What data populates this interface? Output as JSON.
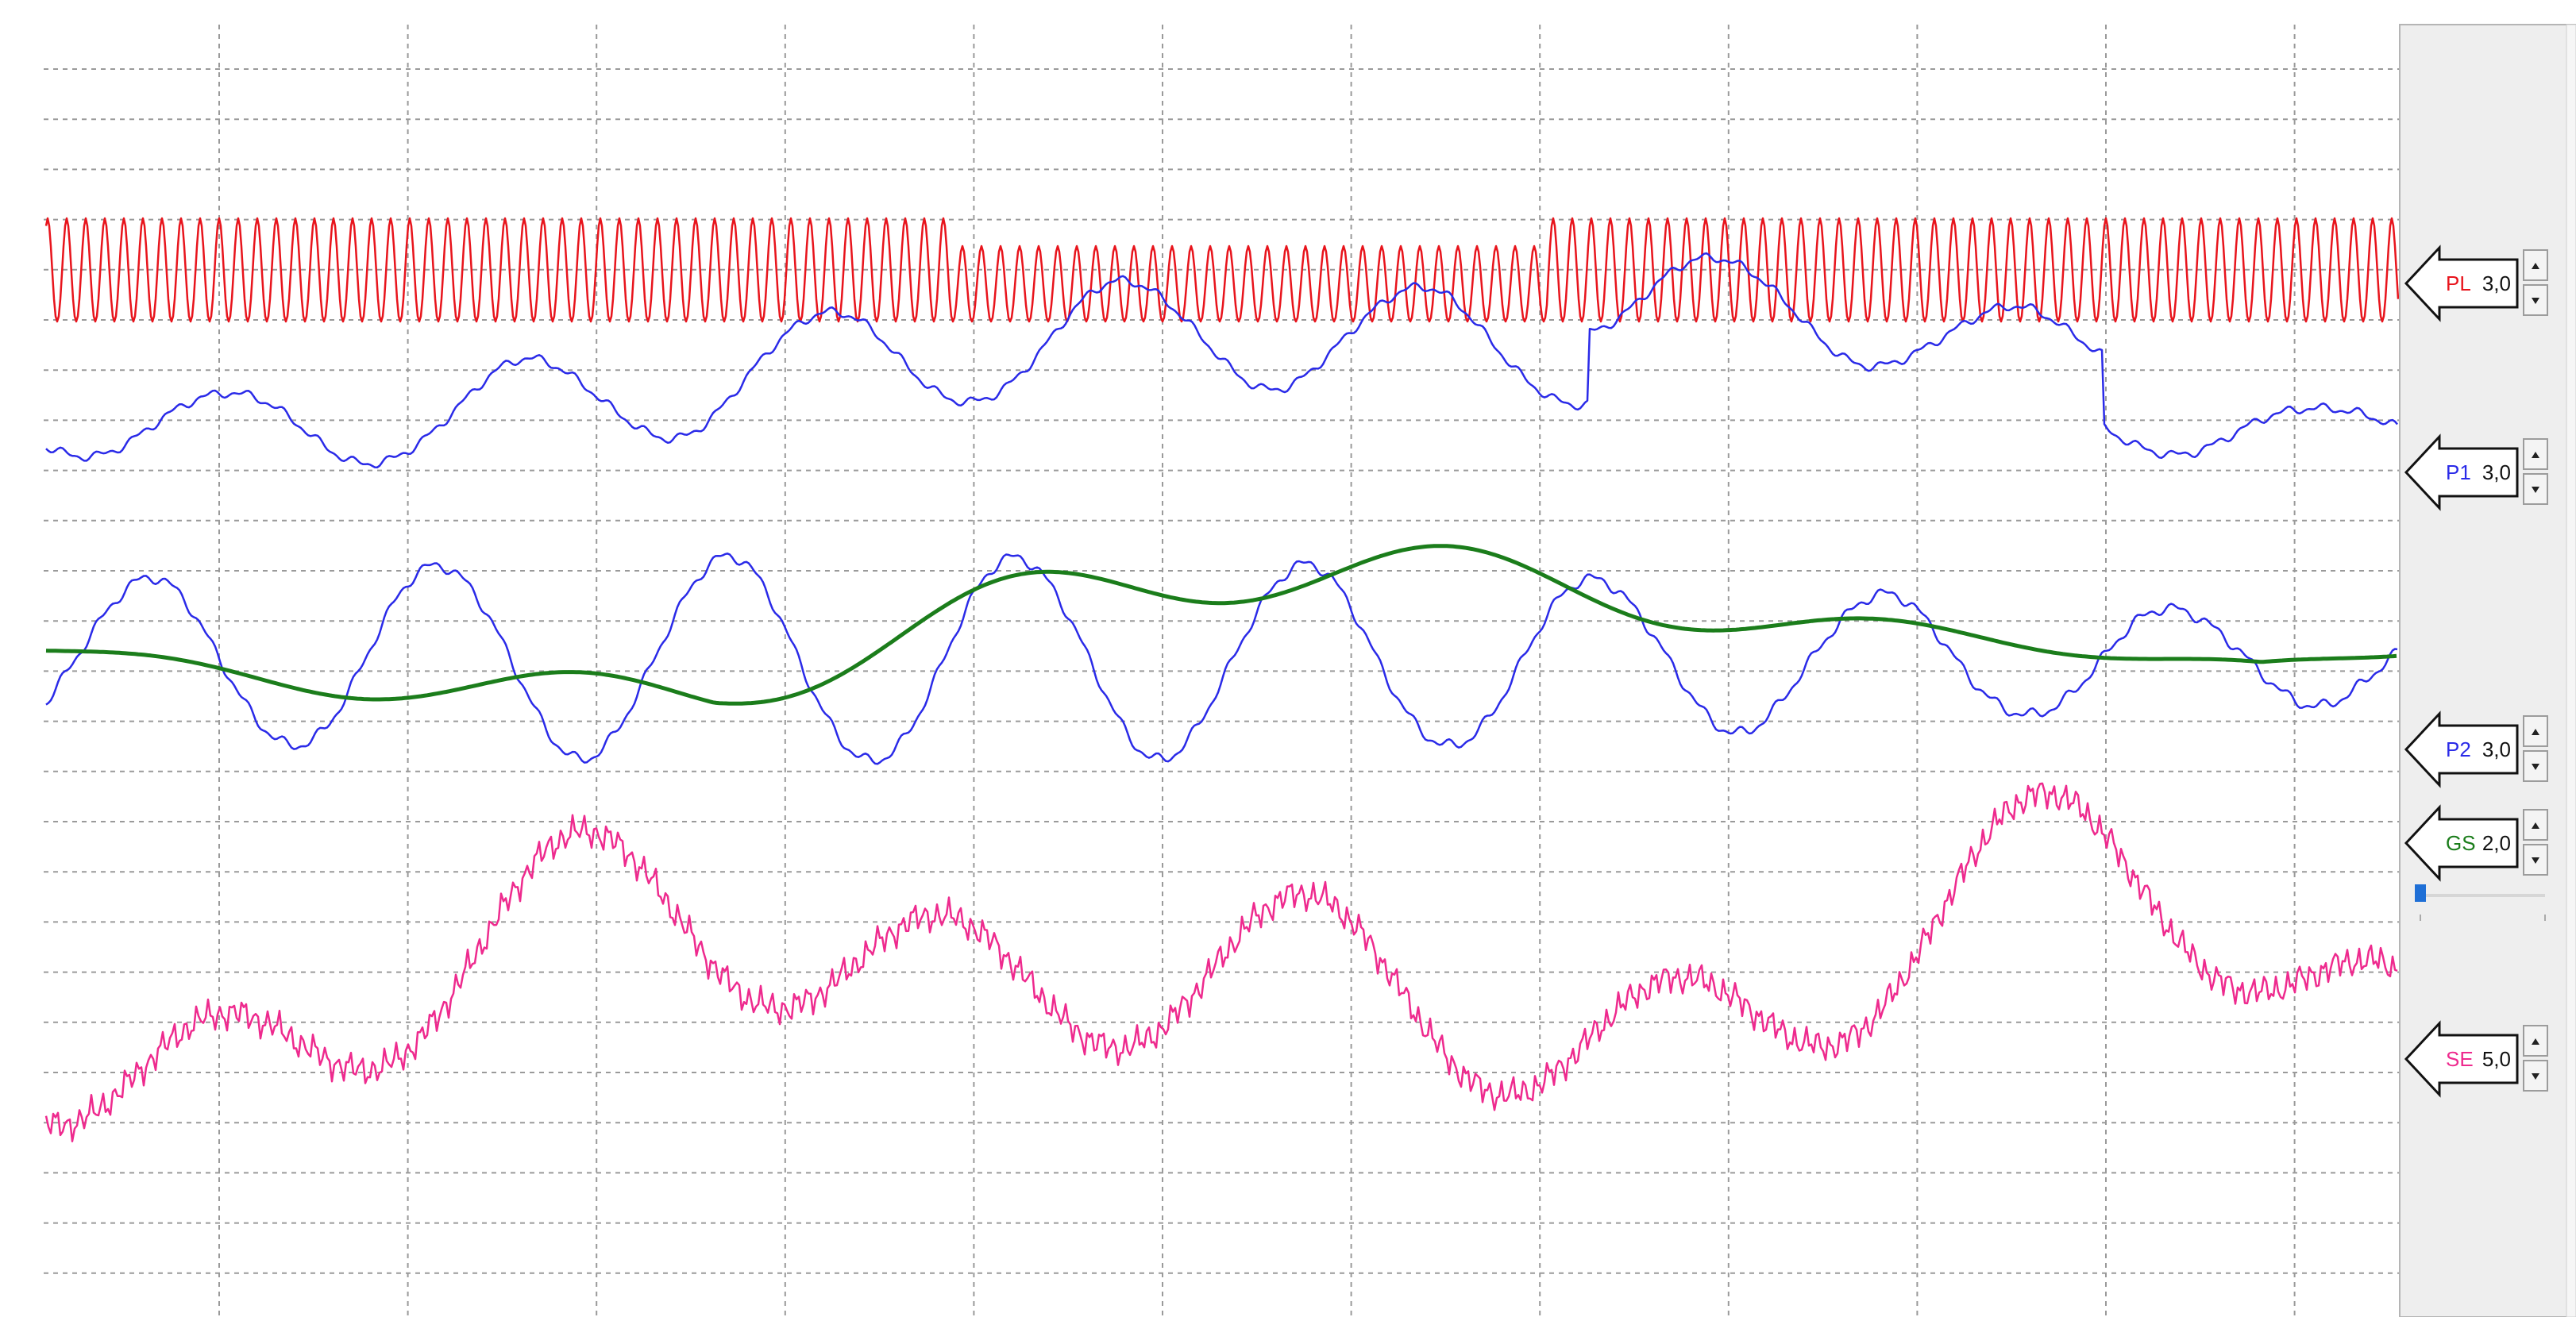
{
  "channels": [
    {
      "label": "PL",
      "gain": "3,0",
      "color": "#e8141c"
    },
    {
      "label": "P1",
      "gain": "3,0",
      "color": "#2a2ae8"
    },
    {
      "label": "P2",
      "gain": "3,0",
      "color": "#2a2ae8"
    },
    {
      "label": "GS",
      "gain": "2,0",
      "color": "#1b7d1b"
    },
    {
      "label": "SE",
      "gain": "5,0",
      "color": "#ee2a8e"
    }
  ]
}
